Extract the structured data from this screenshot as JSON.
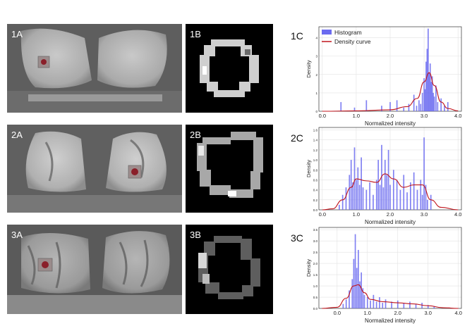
{
  "panels": {
    "row1": {
      "a_label": "1A",
      "b_label": "1B",
      "c_label": "1C"
    },
    "row2": {
      "a_label": "2A",
      "b_label": "2B",
      "c_label": "2C"
    },
    "row3": {
      "a_label": "3A",
      "b_label": "3B",
      "c_label": "3C"
    }
  },
  "colors": {
    "histogram": "#6b6bf0",
    "density_curve": "#c0141c",
    "roi_mark": "#8a1f2a"
  },
  "chart_data": [
    {
      "type": "bar",
      "xlabel": "Normalized intensity",
      "ylabel": "Density",
      "xlim": [
        -0.1,
        4.1
      ],
      "ylim": [
        0,
        4.6
      ],
      "xticks": [
        "0.0",
        "1.0",
        "2.0",
        "3.0",
        "4.0"
      ],
      "yticks": [
        "0",
        "1",
        "2",
        "3",
        "4"
      ],
      "legend": {
        "position": "top-left",
        "histogram": "Histogram",
        "density": "Density curve"
      },
      "grid": true,
      "bins": [
        [
          0.55,
          0.5
        ],
        [
          0.95,
          0.2
        ],
        [
          1.3,
          0.6
        ],
        [
          1.75,
          0.3
        ],
        [
          2.0,
          0.5
        ],
        [
          2.2,
          0.6
        ],
        [
          2.4,
          0.2
        ],
        [
          2.55,
          0.4
        ],
        [
          2.7,
          0.9
        ],
        [
          2.78,
          0.3
        ],
        [
          2.85,
          0.6
        ],
        [
          2.9,
          0.4
        ],
        [
          2.95,
          1.0
        ],
        [
          3.0,
          1.8
        ],
        [
          3.03,
          1.2
        ],
        [
          3.06,
          2.7
        ],
        [
          3.09,
          3.4
        ],
        [
          3.12,
          4.5
        ],
        [
          3.15,
          2.1
        ],
        [
          3.18,
          2.6
        ],
        [
          3.21,
          1.6
        ],
        [
          3.24,
          1.9
        ],
        [
          3.27,
          1.0
        ],
        [
          3.3,
          0.8
        ],
        [
          3.35,
          1.4
        ],
        [
          3.4,
          0.5
        ],
        [
          3.5,
          0.7
        ],
        [
          3.6,
          0.3
        ],
        [
          3.7,
          0.5
        ]
      ],
      "density": [
        [
          0.0,
          0.0
        ],
        [
          1.0,
          0.02
        ],
        [
          2.0,
          0.08
        ],
        [
          2.5,
          0.25
        ],
        [
          2.8,
          0.7
        ],
        [
          3.0,
          1.6
        ],
        [
          3.15,
          2.1
        ],
        [
          3.3,
          1.4
        ],
        [
          3.5,
          0.5
        ],
        [
          3.7,
          0.15
        ],
        [
          4.0,
          0.02
        ]
      ]
    },
    {
      "type": "bar",
      "xlabel": "Normalized intensity",
      "ylabel": "Density",
      "xlim": [
        -0.1,
        4.1
      ],
      "ylim": [
        0,
        1.65
      ],
      "xticks": [
        "0.0",
        "1.0",
        "2.0",
        "3.0",
        "4.0"
      ],
      "yticks": [
        "0.0",
        "0.2",
        "0.4",
        "0.6",
        "0.8",
        "1.0",
        "1.2",
        "1.4",
        "1.6"
      ],
      "grid": true,
      "bins": [
        [
          0.5,
          0.1
        ],
        [
          0.6,
          0.3
        ],
        [
          0.7,
          0.45
        ],
        [
          0.8,
          0.7
        ],
        [
          0.85,
          1.0
        ],
        [
          0.9,
          0.55
        ],
        [
          0.95,
          1.25
        ],
        [
          1.0,
          0.6
        ],
        [
          1.05,
          0.85
        ],
        [
          1.1,
          0.5
        ],
        [
          1.15,
          1.05
        ],
        [
          1.2,
          0.45
        ],
        [
          1.3,
          0.4
        ],
        [
          1.4,
          0.55
        ],
        [
          1.5,
          0.3
        ],
        [
          1.6,
          0.6
        ],
        [
          1.65,
          1.0
        ],
        [
          1.7,
          0.5
        ],
        [
          1.75,
          1.3
        ],
        [
          1.8,
          0.45
        ],
        [
          1.85,
          1.0
        ],
        [
          1.9,
          0.7
        ],
        [
          1.95,
          1.2
        ],
        [
          2.0,
          0.5
        ],
        [
          2.1,
          0.8
        ],
        [
          2.2,
          0.6
        ],
        [
          2.3,
          0.4
        ],
        [
          2.4,
          0.7
        ],
        [
          2.5,
          0.35
        ],
        [
          2.6,
          0.55
        ],
        [
          2.7,
          0.75
        ],
        [
          2.8,
          0.4
        ],
        [
          2.9,
          0.6
        ],
        [
          2.95,
          0.3
        ],
        [
          3.0,
          1.45
        ],
        [
          3.05,
          0.5
        ],
        [
          3.1,
          0.2
        ],
        [
          3.2,
          0.3
        ]
      ],
      "density": [
        [
          0.0,
          0.0
        ],
        [
          0.3,
          0.02
        ],
        [
          0.6,
          0.2
        ],
        [
          0.85,
          0.45
        ],
        [
          1.0,
          0.62
        ],
        [
          1.3,
          0.58
        ],
        [
          1.6,
          0.55
        ],
        [
          1.85,
          0.72
        ],
        [
          2.1,
          0.62
        ],
        [
          2.4,
          0.45
        ],
        [
          2.7,
          0.5
        ],
        [
          2.95,
          0.5
        ],
        [
          3.2,
          0.2
        ],
        [
          3.5,
          0.05
        ],
        [
          4.0,
          0.0
        ]
      ]
    },
    {
      "type": "bar",
      "xlabel": "Normalized intensity",
      "ylabel": "Density",
      "xlim": [
        -0.6,
        4.1
      ],
      "ylim": [
        0,
        3.6
      ],
      "xticks": [
        "0.0",
        "1.0",
        "2.0",
        "3.0",
        "4.0"
      ],
      "yticks": [
        "0.0",
        "0.5",
        "1.0",
        "1.5",
        "2.0",
        "2.5",
        "3.0",
        "3.5"
      ],
      "grid": true,
      "bins": [
        [
          0.2,
          0.2
        ],
        [
          0.3,
          0.4
        ],
        [
          0.4,
          0.8
        ],
        [
          0.5,
          1.3
        ],
        [
          0.55,
          2.2
        ],
        [
          0.6,
          3.3
        ],
        [
          0.65,
          1.8
        ],
        [
          0.7,
          2.6
        ],
        [
          0.75,
          1.2
        ],
        [
          0.8,
          1.6
        ],
        [
          0.85,
          0.9
        ],
        [
          0.9,
          0.6
        ],
        [
          1.0,
          0.5
        ],
        [
          1.1,
          0.35
        ],
        [
          1.2,
          0.6
        ],
        [
          1.3,
          0.3
        ],
        [
          1.4,
          0.5
        ],
        [
          1.5,
          0.25
        ],
        [
          1.6,
          0.4
        ],
        [
          1.8,
          0.3
        ],
        [
          2.0,
          0.35
        ],
        [
          2.2,
          0.25
        ],
        [
          2.4,
          0.3
        ],
        [
          2.6,
          0.2
        ],
        [
          2.8,
          0.25
        ],
        [
          3.0,
          0.15
        ],
        [
          3.2,
          0.1
        ]
      ],
      "density": [
        [
          -0.5,
          0.0
        ],
        [
          0.0,
          0.05
        ],
        [
          0.3,
          0.45
        ],
        [
          0.55,
          1.0
        ],
        [
          0.7,
          1.05
        ],
        [
          0.9,
          0.7
        ],
        [
          1.1,
          0.4
        ],
        [
          1.5,
          0.3
        ],
        [
          2.0,
          0.25
        ],
        [
          2.5,
          0.2
        ],
        [
          3.0,
          0.12
        ],
        [
          3.5,
          0.03
        ],
        [
          4.0,
          0.0
        ]
      ]
    }
  ]
}
